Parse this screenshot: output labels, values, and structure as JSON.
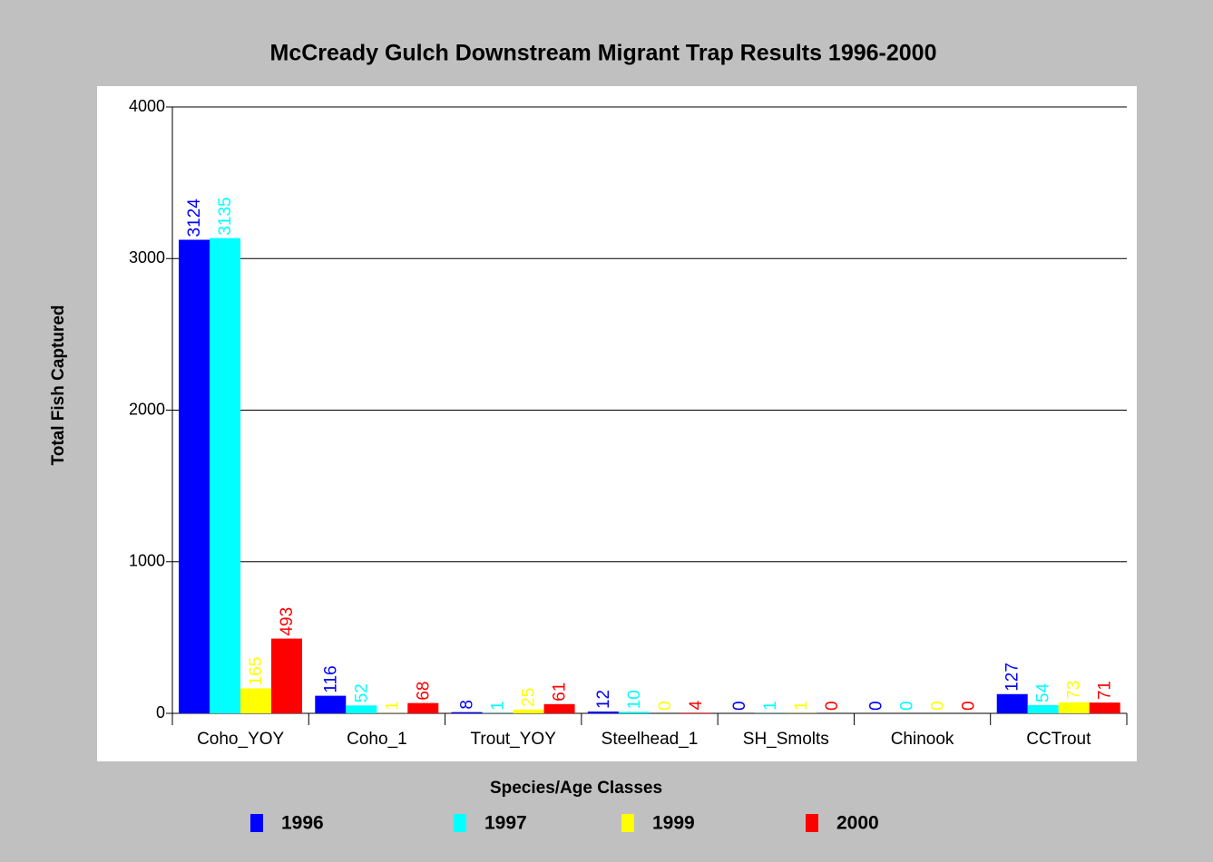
{
  "chart_data": {
    "type": "bar",
    "title": "McCready Gulch Downstream Migrant Trap Results 1996-2000",
    "y_label": "Total Fish Captured",
    "x_label": "Species/Age Classes",
    "categories": [
      "Coho_YOY",
      "Coho_1",
      "Trout_YOY",
      "Steelhead_1",
      "SH_Smolts",
      "Chinook",
      "CCTrout"
    ],
    "series": [
      {
        "name": "1996",
        "color": "#0000ff",
        "values": [
          3124,
          116,
          8,
          12,
          0,
          0,
          127
        ]
      },
      {
        "name": "1997",
        "color": "#00ffff",
        "values": [
          3135,
          52,
          1,
          10,
          1,
          0,
          54
        ]
      },
      {
        "name": "1999",
        "color": "#ffff00",
        "values": [
          165,
          1,
          25,
          0,
          1,
          0,
          73
        ]
      },
      {
        "name": "2000",
        "color": "#ff0000",
        "values": [
          493,
          68,
          61,
          4,
          0,
          0,
          71
        ]
      }
    ],
    "ylim": [
      0,
      4000
    ],
    "yticks": [
      0,
      1000,
      2000,
      3000,
      4000
    ],
    "grid": true
  }
}
